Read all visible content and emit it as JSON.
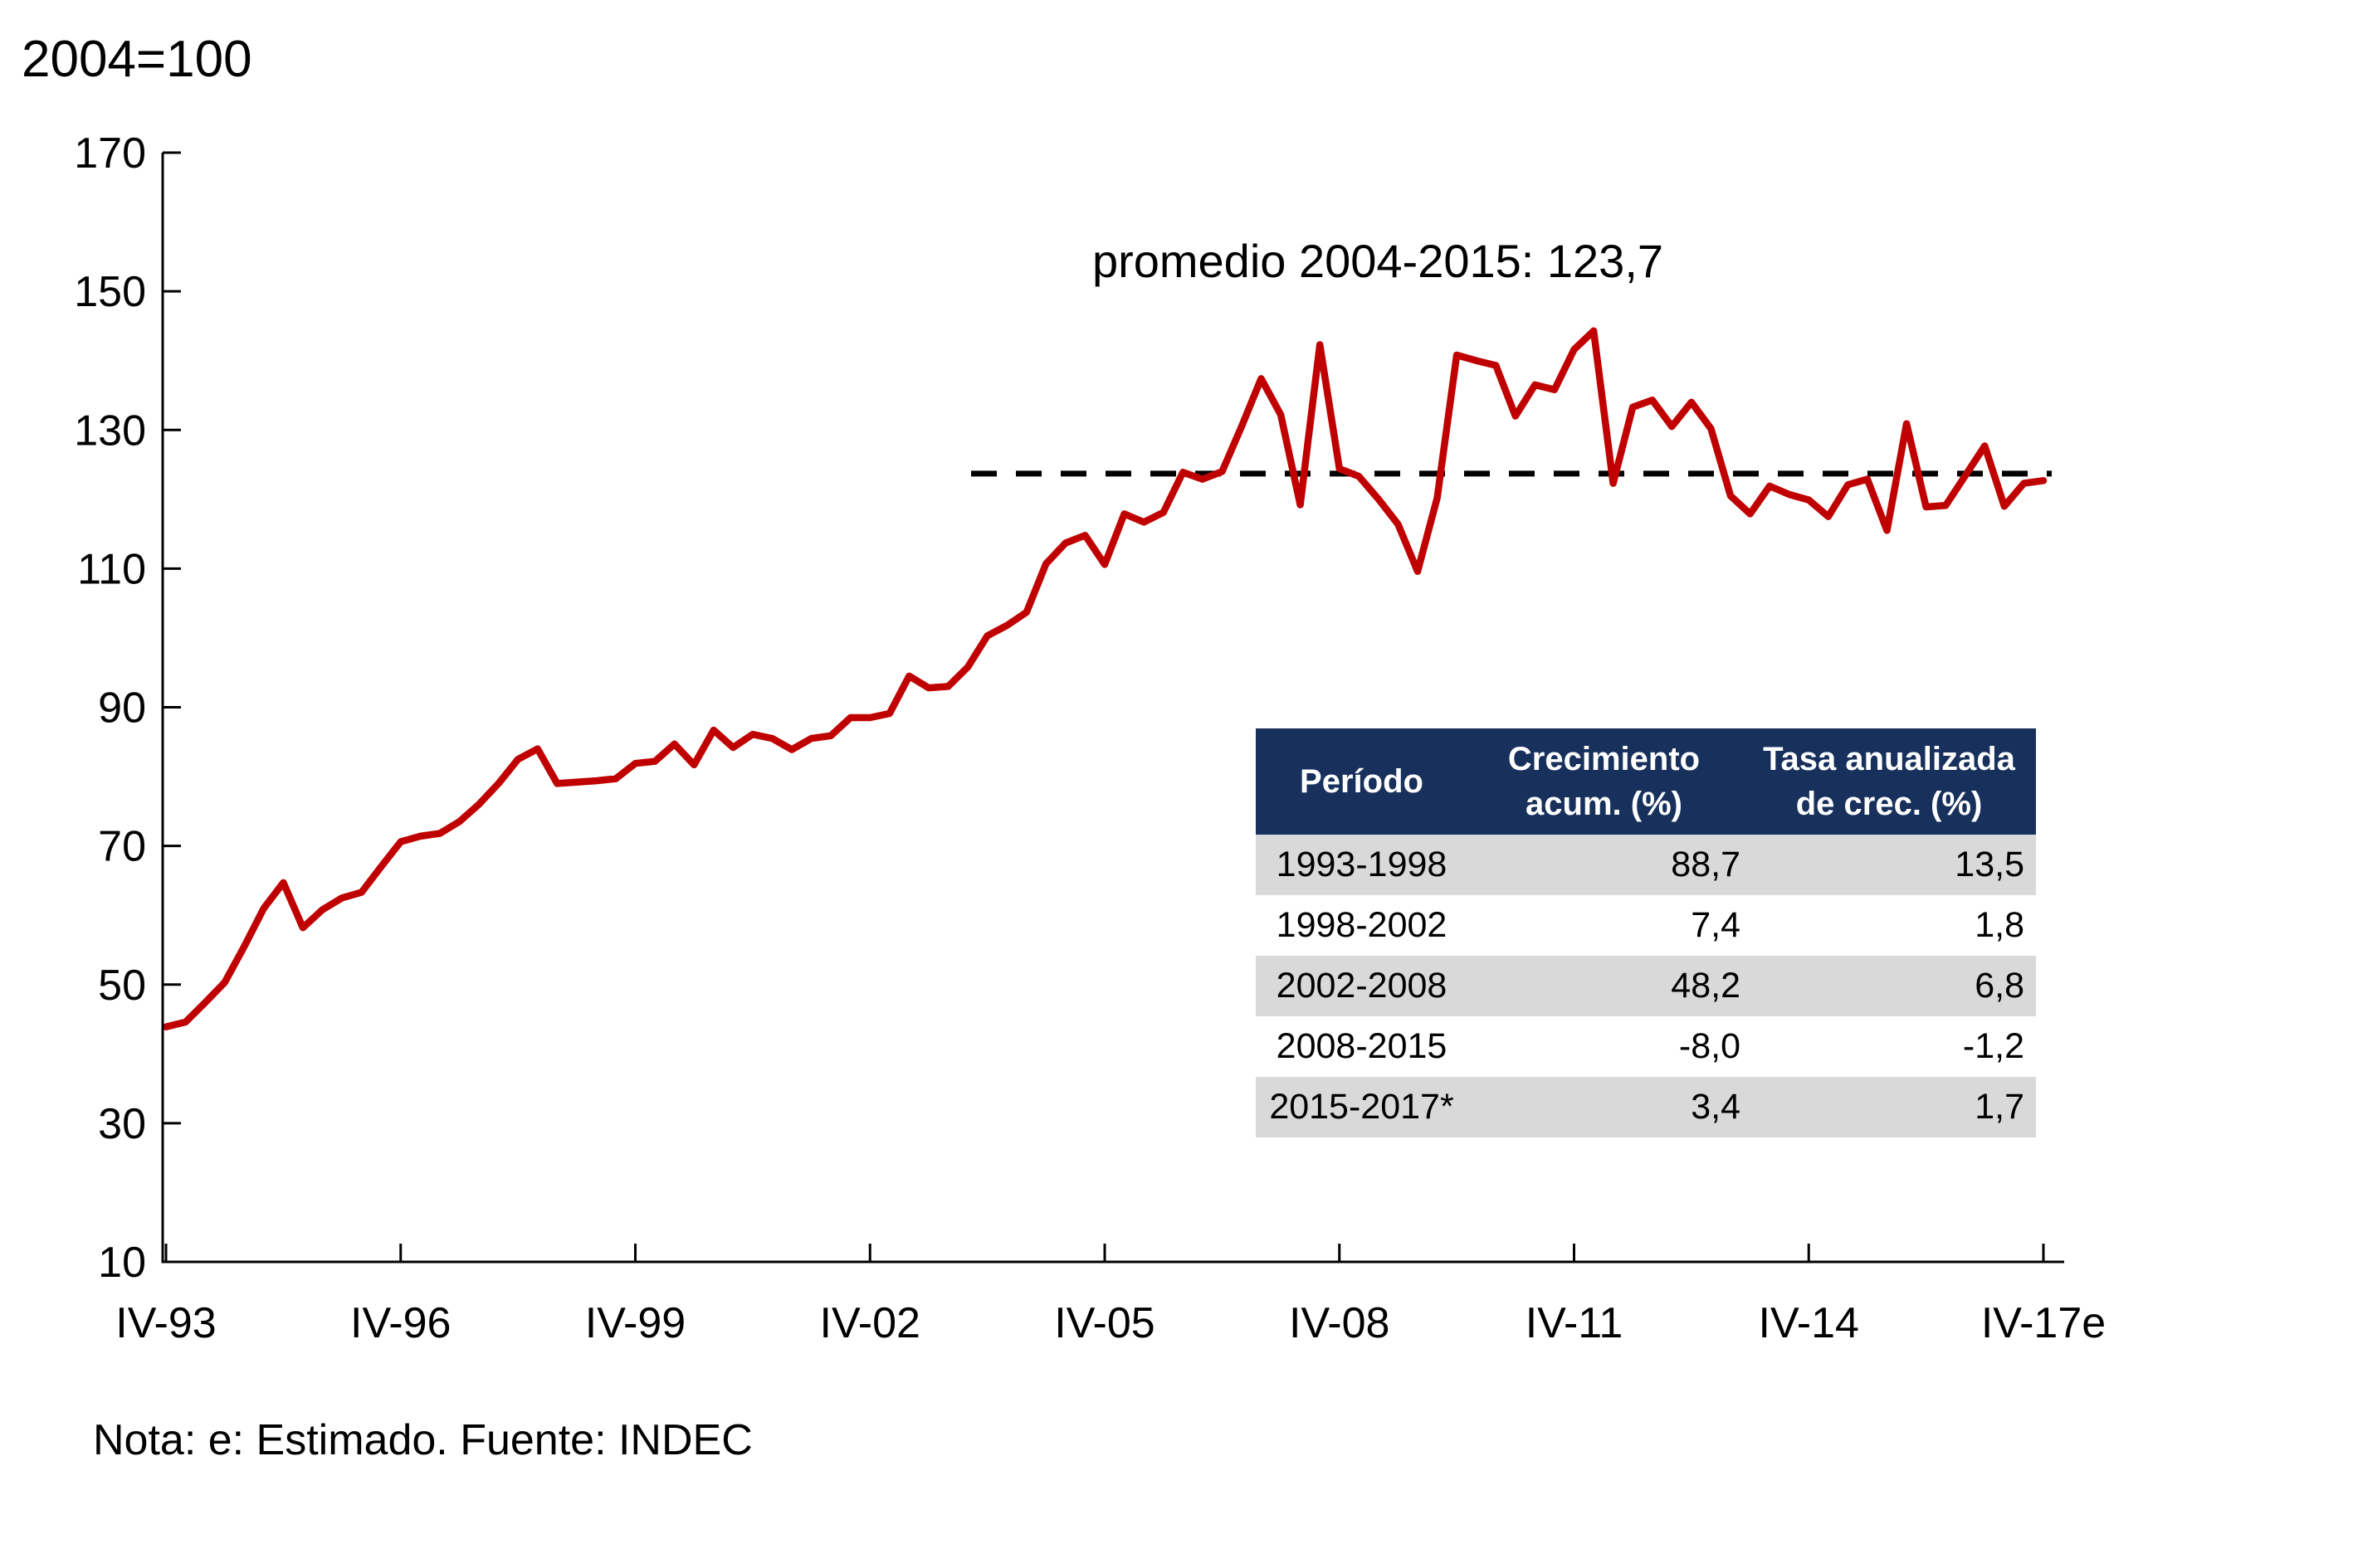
{
  "unit_title": "2004=100",
  "source_note": "Nota: e: Estimado. Fuente: INDEC",
  "annotation": {
    "text": "promedio 2004-2015: 123,7"
  },
  "colors": {
    "series_line": "#C00000",
    "reference_line": "#000000",
    "axis": "#000000",
    "table_header_bg": "#17305C",
    "table_header_text": "#FFFFFF",
    "table_row_alt_bg": "#D9D9D9",
    "table_row_bg": "#FFFFFF",
    "background": "#FFFFFF"
  },
  "chart_data": {
    "type": "line",
    "title": "2004=100",
    "frequency": "quarterly",
    "x_start": "IV-93",
    "x_end": "IV-17e",
    "x_tick_labels": [
      "IV-93",
      "IV-96",
      "IV-99",
      "IV-02",
      "IV-05",
      "IV-08",
      "IV-11",
      "IV-14",
      "IV-17e"
    ],
    "y_tick_labels": [
      "170",
      "150",
      "130",
      "110",
      "90",
      "70",
      "50",
      "30",
      "10"
    ],
    "y_ticks": [
      170,
      150,
      130,
      110,
      90,
      70,
      50,
      30,
      10
    ],
    "ylim": [
      10,
      170
    ],
    "grid": "off",
    "legend": "none",
    "reference_line": {
      "value": 123.7,
      "style": "dashed",
      "color": "#000000",
      "label": "promedio 2004-2015: 123,7",
      "from_x_label": "IV-04",
      "to_x_label": "IV-17e"
    },
    "series": [
      {
        "name": "Índice 2004=100",
        "color": "#C00000",
        "values": [
          43.9,
          44.6,
          47.4,
          50.3,
          55.5,
          61.0,
          64.7,
          58.2,
          60.8,
          62.5,
          63.3,
          67.0,
          70.6,
          71.4,
          71.8,
          73.5,
          76.0,
          79.0,
          82.5,
          84.0,
          79.0,
          79.2,
          79.4,
          79.7,
          81.9,
          82.2,
          84.7,
          81.7,
          86.7,
          84.2,
          86.1,
          85.5,
          83.9,
          85.5,
          85.9,
          88.5,
          88.5,
          89.1,
          94.5,
          92.8,
          93.0,
          95.8,
          100.3,
          101.8,
          103.7,
          110.7,
          113.7,
          114.8,
          110.6,
          117.9,
          116.7,
          118.1,
          123.9,
          122.9,
          124.0,
          130.5,
          137.4,
          132.2,
          119.2,
          142.3,
          124.4,
          123.3,
          120.0,
          116.4,
          109.6,
          120.2,
          140.8,
          140.0,
          139.3,
          132.0,
          136.5,
          135.8,
          141.6,
          144.3,
          122.3,
          133.3,
          134.3,
          130.5,
          134.0,
          130.2,
          120.5,
          117.9,
          121.9,
          120.7,
          119.9,
          117.5,
          122.1,
          122.9,
          115.5,
          130.9,
          118.9,
          119.1,
          123.4,
          127.7,
          119.0,
          122.3,
          122.7
        ]
      }
    ]
  },
  "table": {
    "headers": [
      [
        "Período"
      ],
      [
        "Crecimiento",
        "acum. (%)"
      ],
      [
        "Tasa anualizada",
        "de crec. (%)"
      ]
    ],
    "rows": [
      [
        "1993-1998",
        "88,7",
        "13,5"
      ],
      [
        "1998-2002",
        "7,4",
        "1,8"
      ],
      [
        "2002-2008",
        "48,2",
        "6,8"
      ],
      [
        "2008-2015",
        "-8,0",
        "-1,2"
      ],
      [
        "2015-2017*",
        "3,4",
        "1,7"
      ]
    ]
  }
}
